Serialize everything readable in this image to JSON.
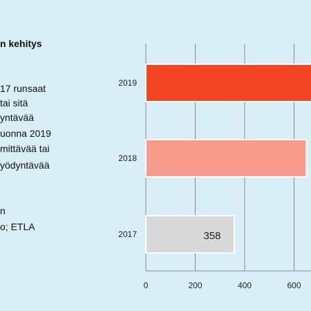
{
  "panel": {
    "title": "n  kehitys",
    "paragraph1": [
      "17 runsaat",
      "tai sitä",
      "yntävää",
      "uonna 2019",
      "mittävää tai",
      "yödyntävää"
    ],
    "source": [
      "n",
      "o; ETLA"
    ]
  },
  "colors": {
    "background": "#d9eef7",
    "bar_2019": "#f04423",
    "bar_2018": "#f79b8c",
    "bar_2017": "#d9d9d9",
    "grid": "#8c8c8c"
  },
  "chart_data": {
    "type": "bar",
    "orientation": "horizontal",
    "categories": [
      "2019",
      "2018",
      "2017"
    ],
    "values": [
      700,
      650,
      358
    ],
    "data_labels": [
      "",
      "",
      "358"
    ],
    "xlim": [
      0,
      800
    ],
    "xticks": [
      "0",
      "200",
      "400",
      "600"
    ],
    "grid": "vertical",
    "title": "",
    "xlabel": "",
    "ylabel": ""
  }
}
